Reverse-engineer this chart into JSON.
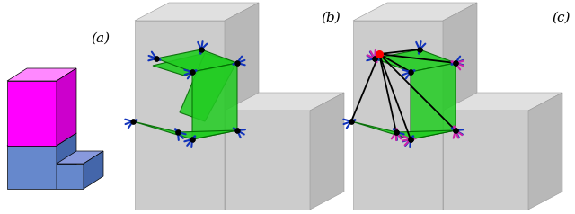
{
  "figsize": [
    6.4,
    2.38
  ],
  "dpi": 100,
  "background": "#ffffff",
  "labels": [
    "(a)",
    "(b)",
    "(c)"
  ],
  "label_fontsize": 11,
  "gray_face": "#cccccc",
  "gray_top": "#e0e0e0",
  "gray_right": "#b8b8b8",
  "green_face": "#22cc22",
  "green_edge": "#006600",
  "magenta": "#ff00ff",
  "magenta_top": "#ff88ff",
  "magenta_right": "#cc00cc",
  "blue_block": "#6688cc",
  "blue_top": "#8899dd",
  "blue_right": "#4466aa",
  "robot_blue": "#1133bb",
  "robot_magenta": "#cc22aa",
  "black": "#000000",
  "red_dot": "#ff0000",
  "gray_edge": "#999999"
}
